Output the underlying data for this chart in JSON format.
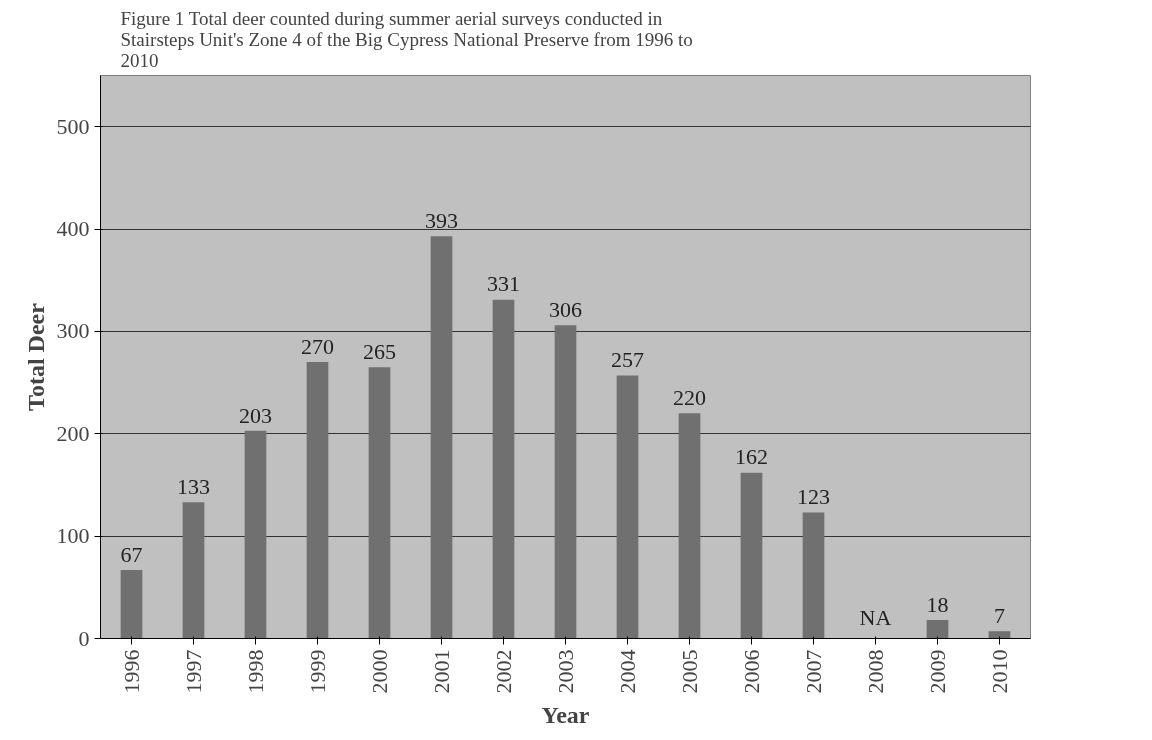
{
  "chart_data": {
    "type": "bar",
    "title": "Figure 1   Total deer counted during summer aerial surveys conducted in\nStairsteps Unit's Zone 4 of the Big Cypress National Preserve from 1996 to\n2010",
    "xlabel": "Year",
    "ylabel": "Total Deer",
    "categories": [
      "1996",
      "1997",
      "1998",
      "1999",
      "2000",
      "2001",
      "2002",
      "2003",
      "2004",
      "2005",
      "2006",
      "2007",
      "2008",
      "2009",
      "2010"
    ],
    "values": [
      67,
      133,
      203,
      270,
      265,
      393,
      331,
      306,
      257,
      220,
      162,
      123,
      null,
      18,
      7
    ],
    "value_labels": [
      "67",
      "133",
      "203",
      "270",
      "265",
      "393",
      "331",
      "306",
      "257",
      "220",
      "162",
      "123",
      "NA",
      "18",
      "7"
    ],
    "color": "#707070",
    "ylim": [
      0,
      550
    ],
    "yticks": [
      0,
      100,
      200,
      300,
      400,
      500
    ],
    "grid": "y"
  }
}
